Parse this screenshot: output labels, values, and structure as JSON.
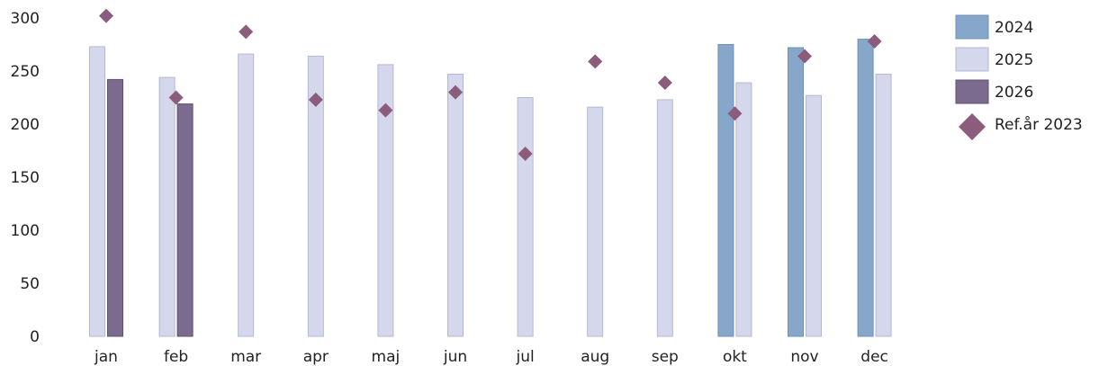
{
  "chart_data": {
    "type": "bar",
    "categories": [
      "jan",
      "feb",
      "mar",
      "apr",
      "maj",
      "jun",
      "jul",
      "aug",
      "sep",
      "okt",
      "nov",
      "dec"
    ],
    "series": [
      {
        "name": "2024",
        "kind": "bar",
        "color": "#87a7ca",
        "stroke": "#6f8fb5",
        "values": [
          null,
          null,
          null,
          null,
          null,
          null,
          null,
          null,
          null,
          275,
          272,
          280
        ]
      },
      {
        "name": "2025",
        "kind": "bar",
        "color": "#d5d8ec",
        "stroke": "#b4b8d2",
        "values": [
          273,
          244,
          266,
          264,
          256,
          247,
          225,
          216,
          223,
          239,
          227,
          247
        ]
      },
      {
        "name": "2026",
        "kind": "bar",
        "color": "#7b6b8f",
        "stroke": "#5f5072",
        "values": [
          242,
          219,
          null,
          null,
          null,
          null,
          null,
          null,
          null,
          null,
          null,
          null
        ]
      },
      {
        "name": "Ref.år 2023",
        "kind": "marker",
        "marker": "diamond",
        "color": "#8b5c7c",
        "values": [
          302,
          225,
          287,
          223,
          213,
          230,
          172,
          259,
          239,
          210,
          264,
          278
        ]
      }
    ],
    "ylim": [
      0,
      300
    ],
    "yticks": [
      0,
      50,
      100,
      150,
      200,
      250,
      300
    ],
    "grid": false,
    "legend": "right-top",
    "title": "",
    "xlabel": "",
    "ylabel": ""
  }
}
